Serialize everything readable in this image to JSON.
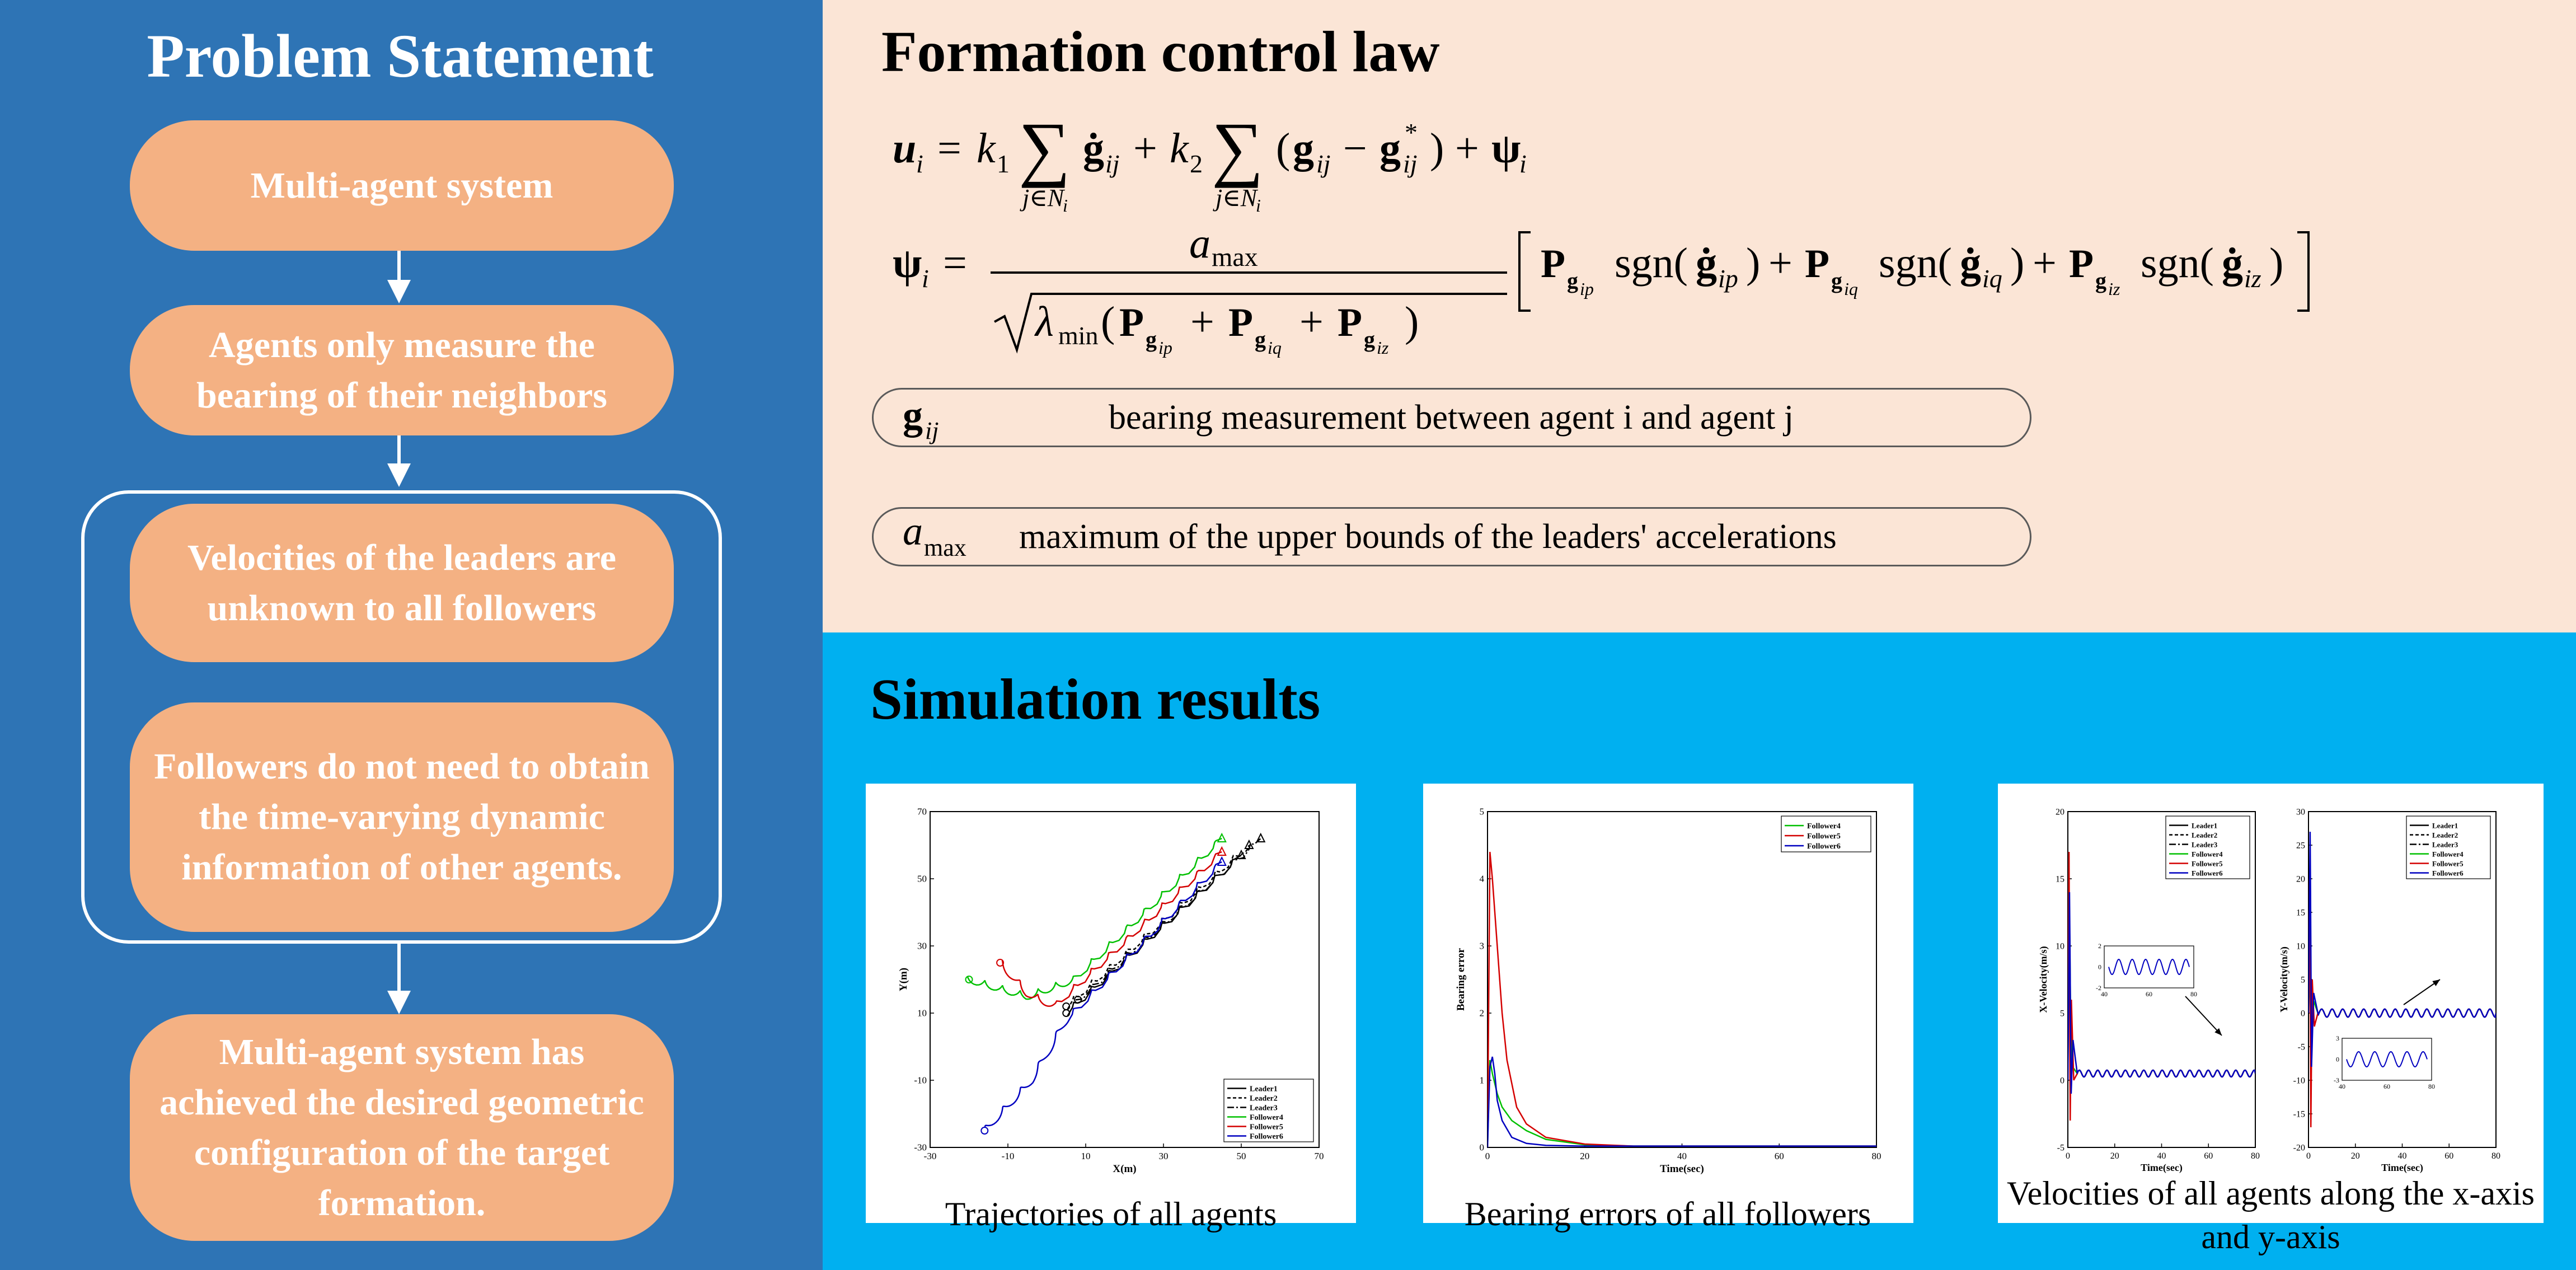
{
  "problem": {
    "title": "Problem Statement",
    "boxes": [
      "Multi-agent system",
      "Agents only measure the bearing of their neighbors",
      "Velocities of the leaders are unknown to all followers",
      "Followers do not need to obtain the time-varying dynamic information of other agents.",
      "Multi-agent system has achieved the desired geometric configuration of the target formation."
    ]
  },
  "formation": {
    "title": "Formation control law",
    "definitions": [
      {
        "text": "bearing measurement between agent i and agent j"
      },
      {
        "text": "maximum of the upper bounds of the leaders' accelerations"
      }
    ]
  },
  "simulation": {
    "title": "Simulation results",
    "captions": [
      "Trajectories of all agents",
      "Bearing errors of all followers",
      "Velocities of all agents along the x-axis and y-axis"
    ]
  },
  "chart_data": [
    {
      "type": "line",
      "xlabel": "X(m)",
      "ylabel": "Y(m)",
      "xlim": [
        -30,
        70
      ],
      "ylim": [
        -30,
        70
      ],
      "xticks": [
        -30,
        -10,
        10,
        30,
        50,
        70
      ],
      "yticks": [
        -30,
        -10,
        10,
        30,
        50,
        70
      ],
      "legend_position": "bottom-right",
      "series": [
        {
          "name": "Leader1",
          "color": "#000000",
          "dash": "",
          "x": [
            5,
            50
          ],
          "y": [
            10,
            57
          ]
        },
        {
          "name": "Leader2",
          "color": "#000000",
          "dash": "6,4",
          "x": [
            5,
            52
          ],
          "y": [
            12,
            60
          ]
        },
        {
          "name": "Leader3",
          "color": "#000000",
          "dash": "12,4,3,4",
          "x": [
            8,
            55
          ],
          "y": [
            14,
            62
          ]
        },
        {
          "name": "Follower4",
          "color": "#00c000",
          "dash": "",
          "x": [
            -20,
            -5,
            7,
            45
          ],
          "y": [
            20,
            15,
            20,
            62
          ]
        },
        {
          "name": "Follower5",
          "color": "#d40000",
          "dash": "",
          "x": [
            -12,
            -5,
            2,
            45
          ],
          "y": [
            25,
            16,
            12,
            58
          ]
        },
        {
          "name": "Follower6",
          "color": "#0000c0",
          "dash": "",
          "x": [
            -16,
            -4,
            5,
            45
          ],
          "y": [
            -25,
            -10,
            8,
            55
          ]
        }
      ]
    },
    {
      "type": "line",
      "xlabel": "Time(sec)",
      "ylabel": "Bearing error",
      "xlim": [
        0,
        80
      ],
      "ylim": [
        0,
        5
      ],
      "xticks": [
        0,
        20,
        40,
        60,
        80
      ],
      "yticks": [
        0,
        1,
        2,
        3,
        4,
        5
      ],
      "legend_position": "top-right",
      "series": [
        {
          "name": "Follower4",
          "color": "#00c000",
          "x": [
            0,
            0.5,
            1,
            2,
            3,
            5,
            8,
            12,
            20,
            30,
            80
          ],
          "y": [
            0,
            1.3,
            1.1,
            0.8,
            0.6,
            0.4,
            0.25,
            0.12,
            0.04,
            0.02,
            0.02
          ]
        },
        {
          "name": "Follower5",
          "color": "#d40000",
          "x": [
            0,
            0.5,
            1,
            2,
            3,
            4,
            6,
            8,
            12,
            20,
            30,
            80
          ],
          "y": [
            0,
            4.4,
            4.0,
            3.0,
            2.0,
            1.3,
            0.6,
            0.35,
            0.15,
            0.05,
            0.02,
            0.02
          ]
        },
        {
          "name": "Follower6",
          "color": "#0000c0",
          "x": [
            0,
            0.5,
            1,
            1.5,
            2,
            3,
            5,
            8,
            12,
            20,
            80
          ],
          "y": [
            0,
            1.2,
            1.35,
            1.1,
            0.7,
            0.4,
            0.15,
            0.06,
            0.03,
            0.02,
            0.02
          ]
        }
      ]
    },
    {
      "type": "line",
      "xlabel": "Time(sec)",
      "ylabel": "X-Velocity(m/s)",
      "xlim": [
        0,
        80
      ],
      "ylim": [
        -5,
        20
      ],
      "xticks": [
        0,
        20,
        40,
        60,
        80
      ],
      "yticks": [
        -5,
        0,
        5,
        10,
        15,
        20
      ],
      "legend_position": "top-right",
      "inset": {
        "xticks": [
          40,
          60,
          80
        ],
        "yticks": [
          -2,
          0,
          2
        ]
      },
      "series": [
        {
          "name": "Leader1",
          "color": "#000000",
          "dash": ""
        },
        {
          "name": "Leader2",
          "color": "#000000",
          "dash": "6,4"
        },
        {
          "name": "Leader3",
          "color": "#000000",
          "dash": "12,4,3,4"
        },
        {
          "name": "Follower4",
          "color": "#00c000",
          "x": [
            0,
            0.6,
            1.2,
            2,
            4,
            80
          ],
          "y": [
            0,
            14,
            4,
            1,
            0.5,
            0.5
          ]
        },
        {
          "name": "Follower5",
          "color": "#d40000",
          "x": [
            0,
            0.5,
            1,
            1.5,
            2.5,
            4,
            80
          ],
          "y": [
            0,
            17,
            -3,
            6,
            0,
            0.5,
            0.5
          ]
        },
        {
          "name": "Follower6",
          "color": "#0000c0",
          "x": [
            0,
            0.7,
            1.4,
            2.2,
            4,
            80
          ],
          "y": [
            0,
            14,
            -1,
            3,
            0.5,
            0.5
          ]
        }
      ]
    },
    {
      "type": "line",
      "xlabel": "Time(sec)",
      "ylabel": "Y-Velocity(m/s)",
      "xlim": [
        0,
        80
      ],
      "ylim": [
        -20,
        30
      ],
      "xticks": [
        0,
        20,
        40,
        60,
        80
      ],
      "yticks": [
        -20,
        -15,
        -10,
        -5,
        0,
        5,
        10,
        15,
        20,
        25,
        30
      ],
      "legend_position": "top-right",
      "inset": {
        "xticks": [
          40,
          60,
          80
        ],
        "yticks": [
          -3,
          0,
          3
        ]
      },
      "series": [
        {
          "name": "Leader1",
          "color": "#000000",
          "dash": ""
        },
        {
          "name": "Leader2",
          "color": "#000000",
          "dash": "6,4"
        },
        {
          "name": "Leader3",
          "color": "#000000",
          "dash": "12,4,3,4"
        },
        {
          "name": "Follower4",
          "color": "#00c000",
          "x": [
            0,
            0.6,
            1.2,
            2,
            4,
            80
          ],
          "y": [
            0,
            8,
            -6,
            2,
            0,
            0
          ]
        },
        {
          "name": "Follower5",
          "color": "#d40000",
          "x": [
            0,
            0.5,
            1,
            1.6,
            2.5,
            4,
            80
          ],
          "y": [
            0,
            20,
            -17,
            5,
            -2,
            0,
            0
          ]
        },
        {
          "name": "Follower6",
          "color": "#0000c0",
          "x": [
            0,
            0.7,
            1.3,
            2.2,
            4,
            80
          ],
          "y": [
            0,
            27,
            -8,
            3,
            0,
            0
          ]
        }
      ]
    }
  ]
}
